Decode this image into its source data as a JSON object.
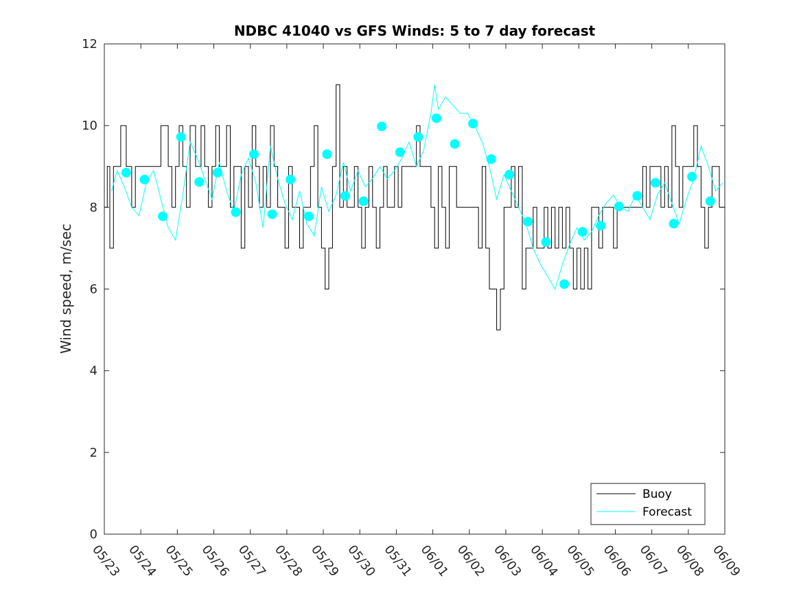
{
  "chart_data": {
    "type": "line",
    "title": "NDBC 41040 vs GFS Winds: 5 to 7 day forecast",
    "xlabel": "",
    "ylabel": "Wind speed, m/sec",
    "ylim": [
      0,
      12
    ],
    "yticks": [
      0,
      2,
      4,
      6,
      8,
      10,
      12
    ],
    "xlim": [
      0,
      17
    ],
    "xtick_labels": [
      "05/23",
      "05/24",
      "05/25",
      "05/26",
      "05/27",
      "05/28",
      "05/29",
      "05/30",
      "05/31",
      "06/01",
      "06/02",
      "06/03",
      "06/04",
      "06/05",
      "06/06",
      "06/07",
      "06/08",
      "06/09"
    ],
    "grid": false,
    "legend_position": "bottom-right",
    "colors": {
      "buoy": "#000000",
      "forecast": "#00ffff"
    },
    "series": [
      {
        "name": "Buoy",
        "style": "step",
        "x": [
          0.0,
          0.08,
          0.15,
          0.25,
          0.35,
          0.45,
          0.6,
          0.75,
          0.85,
          0.95,
          1.05,
          1.2,
          1.4,
          1.55,
          1.65,
          1.75,
          1.85,
          1.95,
          2.05,
          2.15,
          2.25,
          2.35,
          2.5,
          2.65,
          2.75,
          2.85,
          2.95,
          3.05,
          3.15,
          3.25,
          3.35,
          3.45,
          3.55,
          3.65,
          3.75,
          3.85,
          3.95,
          4.05,
          4.15,
          4.25,
          4.35,
          4.45,
          4.55,
          4.65,
          4.75,
          4.85,
          4.95,
          5.05,
          5.15,
          5.25,
          5.35,
          5.45,
          5.55,
          5.65,
          5.75,
          5.85,
          5.95,
          6.05,
          6.15,
          6.25,
          6.35,
          6.45,
          6.55,
          6.65,
          6.75,
          6.85,
          6.95,
          7.05,
          7.15,
          7.25,
          7.35,
          7.45,
          7.55,
          7.65,
          7.75,
          7.85,
          7.95,
          8.05,
          8.15,
          8.25,
          8.35,
          8.45,
          8.55,
          8.65,
          8.75,
          8.85,
          8.95,
          9.05,
          9.15,
          9.25,
          9.35,
          9.45,
          9.55,
          9.65,
          9.75,
          9.85,
          9.95,
          10.05,
          10.15,
          10.25,
          10.35,
          10.45,
          10.55,
          10.65,
          10.75,
          10.85,
          10.95,
          11.05,
          11.15,
          11.25,
          11.35,
          11.45,
          11.55,
          11.65,
          11.75,
          11.85,
          11.95,
          12.05,
          12.15,
          12.25,
          12.35,
          12.45,
          12.55,
          12.65,
          12.75,
          12.85,
          12.95,
          13.05,
          13.15,
          13.25,
          13.35,
          13.45,
          13.55,
          13.65,
          13.75,
          13.85,
          13.95,
          14.05,
          14.15,
          14.25,
          14.35,
          14.45,
          14.55,
          14.65,
          14.75,
          14.85,
          14.95,
          15.05,
          15.15,
          15.25,
          15.35,
          15.45,
          15.55,
          15.65,
          15.75,
          15.85,
          15.95,
          16.05,
          16.15,
          16.25,
          16.35,
          16.45,
          16.55,
          16.65,
          16.75,
          16.85,
          16.95
        ],
        "values": [
          8,
          9,
          7,
          9,
          9,
          10,
          9,
          8,
          9,
          9,
          9,
          9,
          9,
          10,
          10,
          9,
          8,
          9,
          10,
          9,
          8,
          10,
          9,
          10,
          9,
          8,
          9,
          10,
          9,
          9,
          10,
          8,
          9,
          9,
          7,
          9,
          8,
          10,
          9,
          8,
          9,
          8,
          10,
          9,
          8,
          8,
          7,
          9,
          8,
          8,
          7,
          8,
          8,
          9,
          10,
          8,
          7,
          6,
          7,
          9,
          11,
          8,
          9,
          8,
          8,
          9,
          8,
          7,
          8,
          9,
          8,
          7,
          8,
          9,
          8,
          8,
          9,
          8,
          9,
          9,
          9,
          9,
          10,
          9,
          9,
          9,
          8,
          7,
          9,
          8,
          7,
          9,
          9,
          8,
          8,
          8,
          8,
          8,
          8,
          7,
          9,
          7,
          6,
          6,
          5,
          6,
          8,
          8,
          9,
          8,
          9,
          6,
          7,
          7,
          8,
          7,
          7,
          8,
          7,
          8,
          7,
          8,
          7,
          8,
          7,
          6,
          7,
          6,
          7,
          6,
          8,
          8,
          7,
          8,
          8,
          8,
          7,
          8,
          8,
          8,
          8,
          8,
          8,
          8,
          9,
          8,
          9,
          9,
          9,
          8,
          9,
          8,
          10,
          9,
          8,
          9,
          9,
          9,
          10,
          9,
          8,
          7,
          8,
          9,
          9,
          8,
          8
        ]
      },
      {
        "name": "Forecast",
        "style": "line",
        "x": [
          0.2,
          0.35,
          0.55,
          0.75,
          0.95,
          1.15,
          1.35,
          1.55,
          1.75,
          1.95,
          2.15,
          2.35,
          2.55,
          2.75,
          2.95,
          3.15,
          3.35,
          3.55,
          3.75,
          3.95,
          4.15,
          4.35,
          4.55,
          4.75,
          4.95,
          5.15,
          5.35,
          5.55,
          5.75,
          5.95,
          6.15,
          6.35,
          6.55,
          6.75,
          6.95,
          7.15,
          7.35,
          7.55,
          7.75,
          7.95,
          8.15,
          8.35,
          8.55,
          8.75,
          8.95,
          9.05,
          9.15,
          9.35,
          9.55,
          9.75,
          9.95,
          10.15,
          10.35,
          10.55,
          10.75,
          10.95,
          11.15,
          11.35,
          11.55,
          11.75,
          11.95,
          12.15,
          12.35,
          12.55,
          12.75,
          12.95,
          13.15,
          13.35,
          13.55,
          13.75,
          13.95,
          14.15,
          14.35,
          14.55,
          14.75,
          14.95,
          15.15,
          15.35,
          15.55,
          15.75,
          15.95,
          16.15,
          16.35,
          16.55,
          16.75,
          16.95
        ],
        "values": [
          8.4,
          8.9,
          8.5,
          8.0,
          7.8,
          8.6,
          8.9,
          8.2,
          7.5,
          7.2,
          8.3,
          9.6,
          9.2,
          8.7,
          8.2,
          9.1,
          8.4,
          7.9,
          8.8,
          9.2,
          8.6,
          7.5,
          9.5,
          8.7,
          8.1,
          7.7,
          8.4,
          7.6,
          7.3,
          8.5,
          7.9,
          8.3,
          9.1,
          8.4,
          8.9,
          8.5,
          8.7,
          9.0,
          8.7,
          8.9,
          9.2,
          9.6,
          9.0,
          9.4,
          10.3,
          11.0,
          10.4,
          10.7,
          10.5,
          10.3,
          10.3,
          10.0,
          9.6,
          9.0,
          8.2,
          8.8,
          8.4,
          8.0,
          7.6,
          7.0,
          6.6,
          6.3,
          6.0,
          6.6,
          7.1,
          7.5,
          7.2,
          7.4,
          7.8,
          8.1,
          8.3,
          8.0,
          7.9,
          8.3,
          8.0,
          7.7,
          8.3,
          8.6,
          8.1,
          7.6,
          8.2,
          8.7,
          9.5,
          9.0,
          8.4,
          8.6
        ]
      }
    ],
    "forecast_markers": {
      "x": [
        0.6,
        1.1,
        1.6,
        2.1,
        2.6,
        3.1,
        3.6,
        4.1,
        4.6,
        5.1,
        5.6,
        6.1,
        6.6,
        7.1,
        7.6,
        8.1,
        8.6,
        9.1,
        9.6,
        10.1,
        10.6,
        11.1,
        11.6,
        12.1,
        12.6,
        13.1,
        13.6,
        14.1,
        14.6,
        15.1,
        15.6,
        16.1,
        16.6
      ],
      "values": [
        8.85,
        8.68,
        7.78,
        9.72,
        8.62,
        8.85,
        7.88,
        9.3,
        7.83,
        8.68,
        7.78,
        9.3,
        8.28,
        8.15,
        9.98,
        9.35,
        9.72,
        10.18,
        9.55,
        10.05,
        9.18,
        8.8,
        7.65,
        7.15,
        6.12,
        7.4,
        7.55,
        8.02,
        8.28,
        8.6,
        7.6,
        8.75,
        8.15
      ]
    }
  }
}
